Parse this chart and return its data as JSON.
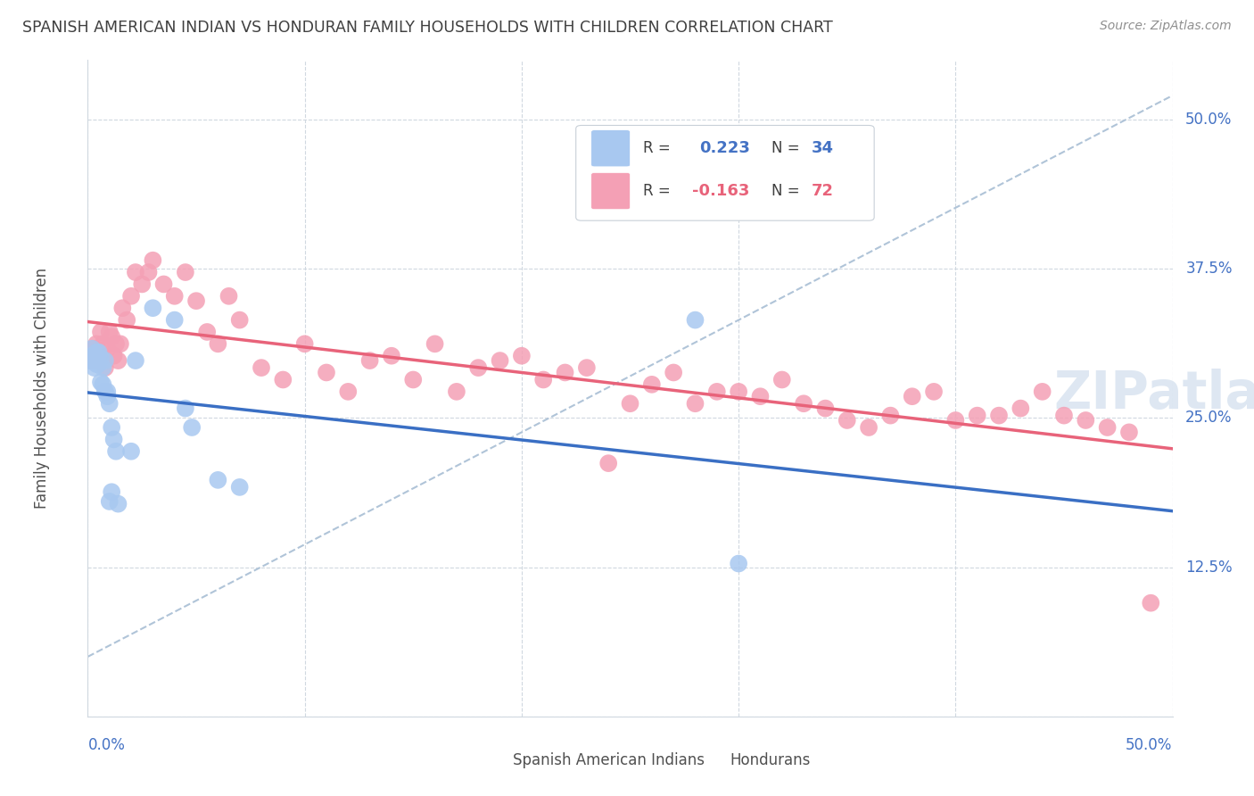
{
  "title": "SPANISH AMERICAN INDIAN VS HONDURAN FAMILY HOUSEHOLDS WITH CHILDREN CORRELATION CHART",
  "source": "Source: ZipAtlas.com",
  "ylabel": "Family Households with Children",
  "legend_label1": "Spanish American Indians",
  "legend_label2": "Hondurans",
  "legend_R1_prefix": "R =  ",
  "legend_R1_val": "0.223",
  "legend_N1_prefix": "N = ",
  "legend_N1_val": "34",
  "legend_R2_prefix": "R = ",
  "legend_R2_val": "-0.163",
  "legend_N2_prefix": "N = ",
  "legend_N2_val": "72",
  "color_blue": "#A8C8F0",
  "color_blue_line": "#3A6FC4",
  "color_pink": "#F4A0B5",
  "color_pink_line": "#E8637A",
  "color_dashed": "#B0C4D8",
  "color_grid": "#D0D8E0",
  "color_title": "#404040",
  "color_source": "#909090",
  "color_axis_blue": "#4472C4",
  "color_r1": "#4472C4",
  "color_r2": "#E8637A",
  "blue_x": [
    0.001,
    0.002,
    0.002,
    0.003,
    0.003,
    0.004,
    0.004,
    0.005,
    0.005,
    0.006,
    0.006,
    0.007,
    0.007,
    0.008,
    0.008,
    0.009,
    0.009,
    0.01,
    0.01,
    0.011,
    0.011,
    0.012,
    0.013,
    0.014,
    0.02,
    0.022,
    0.03,
    0.04,
    0.045,
    0.048,
    0.06,
    0.07,
    0.28,
    0.3
  ],
  "blue_y": [
    0.298,
    0.302,
    0.308,
    0.292,
    0.298,
    0.305,
    0.295,
    0.305,
    0.295,
    0.3,
    0.28,
    0.278,
    0.292,
    0.272,
    0.298,
    0.268,
    0.272,
    0.262,
    0.18,
    0.188,
    0.242,
    0.232,
    0.222,
    0.178,
    0.222,
    0.298,
    0.342,
    0.332,
    0.258,
    0.242,
    0.198,
    0.192,
    0.332,
    0.128
  ],
  "pink_x": [
    0.002,
    0.003,
    0.004,
    0.005,
    0.006,
    0.006,
    0.007,
    0.008,
    0.009,
    0.01,
    0.011,
    0.012,
    0.013,
    0.014,
    0.015,
    0.016,
    0.018,
    0.02,
    0.022,
    0.025,
    0.028,
    0.03,
    0.035,
    0.04,
    0.045,
    0.05,
    0.055,
    0.06,
    0.065,
    0.07,
    0.08,
    0.09,
    0.1,
    0.11,
    0.12,
    0.13,
    0.14,
    0.15,
    0.16,
    0.17,
    0.18,
    0.19,
    0.2,
    0.21,
    0.22,
    0.23,
    0.24,
    0.25,
    0.26,
    0.27,
    0.28,
    0.29,
    0.3,
    0.31,
    0.32,
    0.33,
    0.34,
    0.35,
    0.36,
    0.37,
    0.38,
    0.39,
    0.4,
    0.41,
    0.42,
    0.43,
    0.44,
    0.45,
    0.46,
    0.47,
    0.48,
    0.49
  ],
  "pink_y": [
    0.298,
    0.308,
    0.312,
    0.302,
    0.322,
    0.298,
    0.312,
    0.292,
    0.308,
    0.322,
    0.318,
    0.302,
    0.312,
    0.298,
    0.312,
    0.342,
    0.332,
    0.352,
    0.372,
    0.362,
    0.372,
    0.382,
    0.362,
    0.352,
    0.372,
    0.348,
    0.322,
    0.312,
    0.352,
    0.332,
    0.292,
    0.282,
    0.312,
    0.288,
    0.272,
    0.298,
    0.302,
    0.282,
    0.312,
    0.272,
    0.292,
    0.298,
    0.302,
    0.282,
    0.288,
    0.292,
    0.212,
    0.262,
    0.278,
    0.288,
    0.262,
    0.272,
    0.272,
    0.268,
    0.282,
    0.262,
    0.258,
    0.248,
    0.242,
    0.252,
    0.268,
    0.272,
    0.248,
    0.252,
    0.252,
    0.258,
    0.272,
    0.252,
    0.248,
    0.242,
    0.238,
    0.095
  ],
  "xlim": [
    0.0,
    0.5
  ],
  "ylim": [
    0.0,
    0.55
  ],
  "y_tick_vals": [
    0.0,
    0.125,
    0.25,
    0.375,
    0.5
  ],
  "y_tick_labels": [
    "",
    "12.5%",
    "25.0%",
    "37.5%",
    "50.0%"
  ],
  "x_tick_left": "0.0%",
  "x_tick_right": "50.0%"
}
